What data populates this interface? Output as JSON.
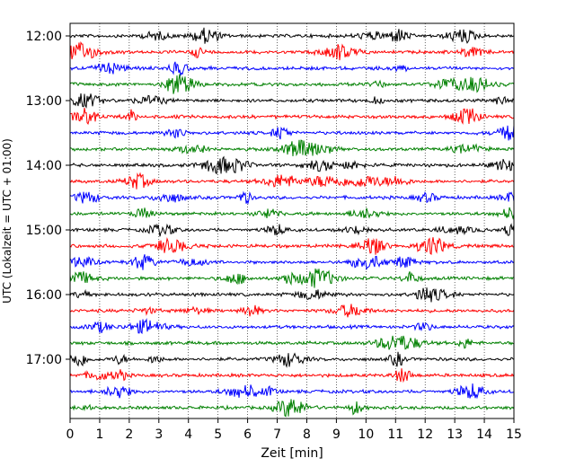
{
  "chart_data": {
    "type": "line",
    "title": "",
    "xlabel": "Zeit  [min]",
    "ylabel": "UTC (Lokalzeit = UTC + 01:00)",
    "xlim": [
      0,
      15
    ],
    "x_ticks": [
      0,
      1,
      2,
      3,
      4,
      5,
      6,
      7,
      8,
      9,
      10,
      11,
      12,
      13,
      14,
      15
    ],
    "x_tick_labels": [
      "0",
      "1",
      "2",
      "3",
      "4",
      "5",
      "6",
      "7",
      "8",
      "9",
      "10",
      "11",
      "12",
      "13",
      "14",
      "15"
    ],
    "y_tick_labels": [
      "12:00",
      "13:00",
      "14:00",
      "15:00",
      "16:00",
      "17:00"
    ],
    "vertical_grid": true,
    "grid_style": "dotted",
    "trace_minutes_per_line": 15,
    "trace_start": "12:00",
    "trace_count": 24,
    "trace_colors": [
      "#000000",
      "#ff0000",
      "#0000ff",
      "#008000"
    ],
    "noise_amplitude": 0.12,
    "burst_amplitude": 0.3
  }
}
